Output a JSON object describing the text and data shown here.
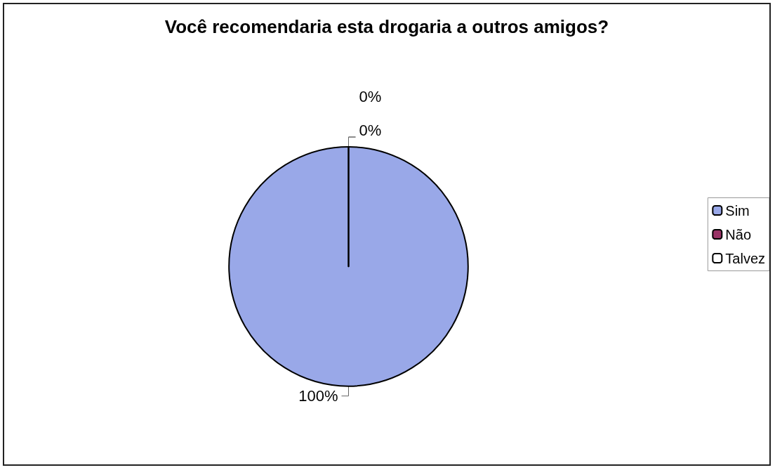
{
  "chart_data": {
    "type": "pie",
    "title": "Você recomendaria esta drogaria a outros amigos?",
    "categories": [
      "Sim",
      "Não",
      "Talvez"
    ],
    "values": [
      100,
      0,
      0
    ],
    "value_labels": [
      "100%",
      "0%",
      "0%"
    ],
    "colors": [
      "#99a8e8",
      "#993366",
      "#ffffff"
    ],
    "legend": "right"
  }
}
